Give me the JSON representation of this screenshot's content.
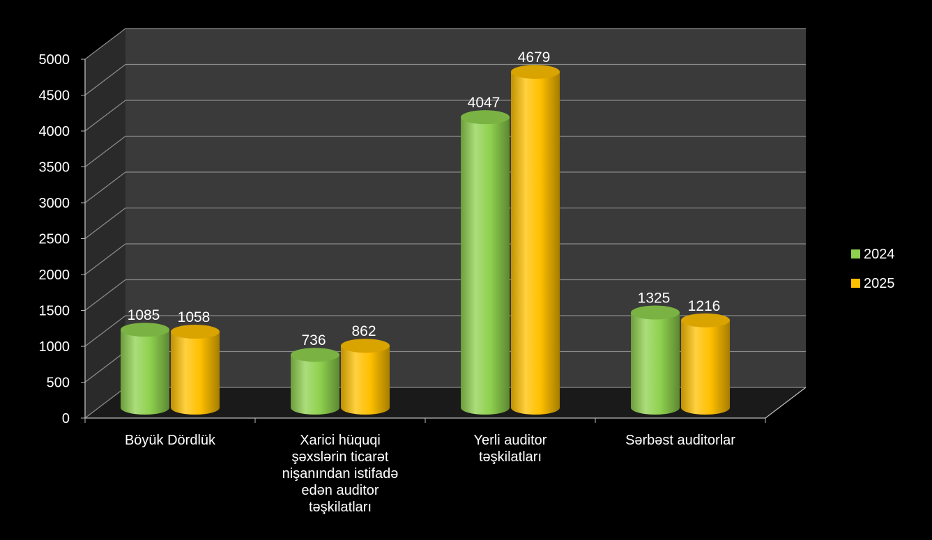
{
  "chart_data": {
    "type": "bar",
    "categories": [
      [
        "Böyük Dördlük"
      ],
      [
        "Xarici hüquqi",
        "şəxslərin ticarət",
        "nişanından istifadə",
        "edən auditor",
        "təşkilatları"
      ],
      [
        "Yerli auditor",
        "təşkilatları"
      ],
      [
        "Sərbəst auditorlar"
      ]
    ],
    "series": [
      {
        "name": "2024",
        "color": "#8FD14F",
        "values": [
          1085,
          736,
          4047,
          1325
        ]
      },
      {
        "name": "2025",
        "color": "#FFC000",
        "values": [
          1058,
          862,
          4679,
          1216
        ]
      }
    ],
    "ylim": [
      0,
      5000
    ],
    "yticks": [
      "0",
      "500",
      "1000",
      "1500",
      "2000",
      "2500",
      "3000",
      "3500",
      "4000",
      "4500",
      "5000"
    ],
    "grid": true,
    "legend": "right",
    "style": "3d-cylinder",
    "background": "#000000",
    "wall_color": "#3a3a3a",
    "floor_color": "#1a1a1a",
    "gridline_color": "#8a8a8a"
  }
}
